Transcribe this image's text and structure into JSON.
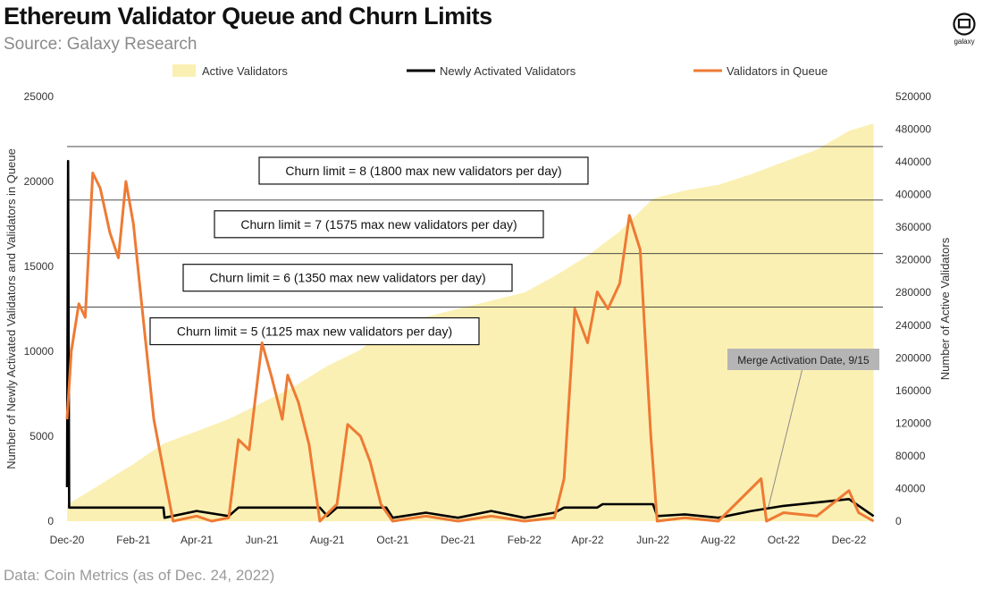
{
  "header": {
    "title": "Ethereum Validator Queue and Churn Limits",
    "subtitle": "Source: Galaxy Research"
  },
  "logo": {
    "text": "galaxy",
    "icon": "galaxy-logo-icon"
  },
  "footer": {
    "text": "Data: Coin Metrics (as of Dec. 24, 2022)"
  },
  "chart_data": {
    "type": "line",
    "title": "Ethereum Validator Queue and Churn Limits",
    "ylabel": "Number of Newly Activated Validators and Validators in Queue",
    "y2label": "Number of Active Validators",
    "ylim": [
      0,
      25000
    ],
    "y2lim": [
      0,
      520000
    ],
    "yticks": [
      "0",
      "5000",
      "10000",
      "15000",
      "20000",
      "25000"
    ],
    "y2ticks": [
      "0",
      "40000",
      "80000",
      "120000",
      "160000",
      "200000",
      "240000",
      "280000",
      "320000",
      "360000",
      "400000",
      "440000",
      "480000",
      "520000"
    ],
    "xticks": [
      "Dec-20",
      "Feb-21",
      "Apr-21",
      "Jun-21",
      "Aug-21",
      "Oct-21",
      "Dec-21",
      "Feb-22",
      "Apr-22",
      "Jun-22",
      "Aug-22",
      "Oct-22",
      "Dec-22"
    ],
    "grid": false,
    "legend_position": "top",
    "colors": {
      "active": "#fbf0b3",
      "newly": "#000000",
      "queue": "#ee7a34",
      "annotation_bg": "#b5b5b5"
    },
    "x_dates": [
      "2020-12-01",
      "2021-02-01",
      "2021-04-01",
      "2021-06-01",
      "2021-08-01",
      "2021-10-01",
      "2021-12-01",
      "2022-02-01",
      "2022-04-01",
      "2022-06-01",
      "2022-08-01",
      "2022-10-01",
      "2022-12-01"
    ],
    "churn_limits": [
      {
        "label": "Churn limit = 8 (1800 max new validators per day)",
        "y2": 458752
      },
      {
        "label": "Churn limit = 7 (1575 max new validators per day)",
        "y2": 393216
      },
      {
        "label": "Churn limit = 6 (1350 max new validators per day)",
        "y2": 327680
      },
      {
        "label": "Churn limit = 5 (1125 max new validators per day)",
        "y2": 262144
      }
    ],
    "annotation": {
      "label": "Merge Activation Date, 9/15",
      "date": "2022-09-15"
    },
    "series": [
      {
        "name": "Active Validators",
        "axis": "y2",
        "points": [
          [
            "2020-12-01",
            20000
          ],
          [
            "2021-01-01",
            45000
          ],
          [
            "2021-02-01",
            70000
          ],
          [
            "2021-03-01",
            95000
          ],
          [
            "2021-04-01",
            110000
          ],
          [
            "2021-05-01",
            125000
          ],
          [
            "2021-06-01",
            145000
          ],
          [
            "2021-07-01",
            165000
          ],
          [
            "2021-08-01",
            190000
          ],
          [
            "2021-09-01",
            210000
          ],
          [
            "2021-10-01",
            240000
          ],
          [
            "2021-11-01",
            250000
          ],
          [
            "2021-12-01",
            260000
          ],
          [
            "2022-01-01",
            270000
          ],
          [
            "2022-02-01",
            280000
          ],
          [
            "2022-03-01",
            300000
          ],
          [
            "2022-04-01",
            325000
          ],
          [
            "2022-05-01",
            355000
          ],
          [
            "2022-06-01",
            395000
          ],
          [
            "2022-07-01",
            405000
          ],
          [
            "2022-08-01",
            412000
          ],
          [
            "2022-09-01",
            425000
          ],
          [
            "2022-10-01",
            440000
          ],
          [
            "2022-11-01",
            455000
          ],
          [
            "2022-12-01",
            478000
          ],
          [
            "2022-12-24",
            487000
          ]
        ]
      },
      {
        "name": "Newly Activated Validators",
        "axis": "y",
        "points": [
          [
            "2020-12-01",
            2000
          ],
          [
            "2020-12-02",
            21200
          ],
          [
            "2020-12-03",
            800
          ],
          [
            "2021-03-01",
            800
          ],
          [
            "2021-03-02",
            200
          ],
          [
            "2021-04-01",
            600
          ],
          [
            "2021-05-01",
            300
          ],
          [
            "2021-05-10",
            800
          ],
          [
            "2021-07-25",
            800
          ],
          [
            "2021-08-01",
            300
          ],
          [
            "2021-08-10",
            800
          ],
          [
            "2021-09-25",
            800
          ],
          [
            "2021-10-01",
            200
          ],
          [
            "2021-11-01",
            500
          ],
          [
            "2021-12-01",
            200
          ],
          [
            "2022-01-01",
            600
          ],
          [
            "2022-02-01",
            200
          ],
          [
            "2022-03-01",
            500
          ],
          [
            "2022-03-10",
            800
          ],
          [
            "2022-04-10",
            800
          ],
          [
            "2022-04-15",
            1000
          ],
          [
            "2022-06-01",
            1000
          ],
          [
            "2022-06-05",
            300
          ],
          [
            "2022-07-01",
            400
          ],
          [
            "2022-08-01",
            200
          ],
          [
            "2022-09-01",
            600
          ],
          [
            "2022-10-01",
            900
          ],
          [
            "2022-11-01",
            1100
          ],
          [
            "2022-12-01",
            1300
          ],
          [
            "2022-12-24",
            300
          ]
        ]
      },
      {
        "name": "Validators in Queue",
        "axis": "y",
        "points": [
          [
            "2020-12-01",
            6000
          ],
          [
            "2020-12-05",
            10000
          ],
          [
            "2020-12-12",
            12800
          ],
          [
            "2020-12-18",
            12000
          ],
          [
            "2020-12-25",
            20500
          ],
          [
            "2021-01-01",
            19600
          ],
          [
            "2021-01-10",
            17000
          ],
          [
            "2021-01-18",
            15500
          ],
          [
            "2021-01-25",
            20000
          ],
          [
            "2021-02-01",
            17500
          ],
          [
            "2021-02-10",
            12000
          ],
          [
            "2021-02-20",
            6000
          ],
          [
            "2021-03-01",
            3000
          ],
          [
            "2021-03-10",
            0
          ],
          [
            "2021-04-01",
            300
          ],
          [
            "2021-04-15",
            0
          ],
          [
            "2021-05-01",
            200
          ],
          [
            "2021-05-10",
            4800
          ],
          [
            "2021-05-20",
            4200
          ],
          [
            "2021-06-01",
            10500
          ],
          [
            "2021-06-10",
            8500
          ],
          [
            "2021-06-20",
            6000
          ],
          [
            "2021-06-25",
            8600
          ],
          [
            "2021-07-05",
            7000
          ],
          [
            "2021-07-15",
            4500
          ],
          [
            "2021-07-25",
            0
          ],
          [
            "2021-08-10",
            1000
          ],
          [
            "2021-08-20",
            5700
          ],
          [
            "2021-09-01",
            5000
          ],
          [
            "2021-09-10",
            3500
          ],
          [
            "2021-09-20",
            1000
          ],
          [
            "2021-10-01",
            0
          ],
          [
            "2021-11-01",
            300
          ],
          [
            "2021-12-01",
            0
          ],
          [
            "2022-01-01",
            300
          ],
          [
            "2022-02-01",
            0
          ],
          [
            "2022-03-01",
            200
          ],
          [
            "2022-03-10",
            2500
          ],
          [
            "2022-03-20",
            12500
          ],
          [
            "2022-04-01",
            10500
          ],
          [
            "2022-04-10",
            13500
          ],
          [
            "2022-04-20",
            12500
          ],
          [
            "2022-05-01",
            14000
          ],
          [
            "2022-05-10",
            18000
          ],
          [
            "2022-05-20",
            16000
          ],
          [
            "2022-05-30",
            5000
          ],
          [
            "2022-06-05",
            0
          ],
          [
            "2022-07-01",
            200
          ],
          [
            "2022-08-01",
            0
          ],
          [
            "2022-09-10",
            2500
          ],
          [
            "2022-09-15",
            0
          ],
          [
            "2022-10-01",
            500
          ],
          [
            "2022-11-01",
            300
          ],
          [
            "2022-12-01",
            1800
          ],
          [
            "2022-12-10",
            500
          ],
          [
            "2022-12-24",
            0
          ]
        ]
      }
    ]
  }
}
